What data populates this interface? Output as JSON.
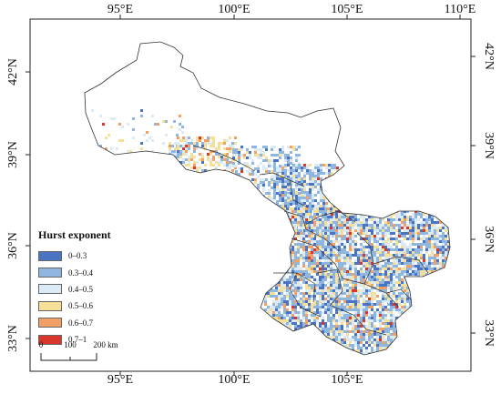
{
  "axes": {
    "longitude_labels": [
      "95°E",
      "100°E",
      "105°E",
      "110°E"
    ],
    "latitude_labels": [
      "42°N",
      "39°N",
      "36°N",
      "33°N"
    ]
  },
  "legend": {
    "title": "Hurst exponent",
    "items": [
      {
        "label": "0–0.3",
        "color": "#4a74c3"
      },
      {
        "label": "0.3–0.4",
        "color": "#8fb6df"
      },
      {
        "label": "0.4–0.5",
        "color": "#dbeaf4"
      },
      {
        "label": "0.5–0.6",
        "color": "#f6df97"
      },
      {
        "label": "0.6–0.7",
        "color": "#f2a066"
      },
      {
        "label": "0.7–1",
        "color": "#d9372c"
      }
    ]
  },
  "scale_bar": {
    "ticks": [
      "0",
      "100",
      "200 km"
    ]
  }
}
